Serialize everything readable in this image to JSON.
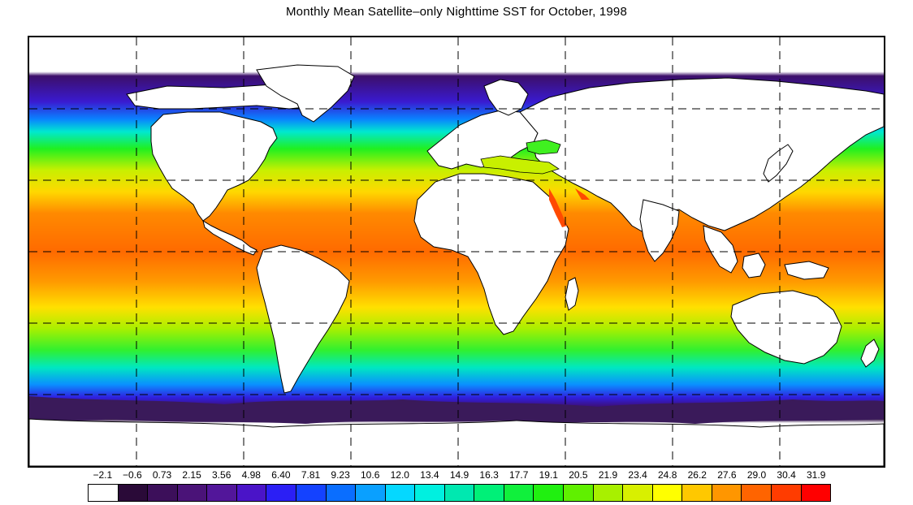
{
  "title": "Monthly Mean Satellite–only Nighttime SST for October, 1998",
  "colorbar": {
    "labels": [
      "−2.1",
      "−0.6",
      "0.73",
      "2.15",
      "3.56",
      "4.98",
      "6.40",
      "7.81",
      "9.23",
      "10.6",
      "12.0",
      "13.4",
      "14.9",
      "16.3",
      "17.7",
      "19.1",
      "20.5",
      "21.9",
      "23.4",
      "24.8",
      "26.2",
      "27.6",
      "29.0",
      "30.4",
      "31.9"
    ],
    "colors": [
      "#ffffff",
      "#2a0a38",
      "#3c0f5a",
      "#4a1378",
      "#52169a",
      "#4a14c8",
      "#2b1ff5",
      "#1442ff",
      "#0a6eff",
      "#0aa0ff",
      "#05d8ff",
      "#00f0e0",
      "#00e8b0",
      "#00f078",
      "#10f03c",
      "#20f010",
      "#60f000",
      "#a8f000",
      "#d8f000",
      "#ffff00",
      "#ffc800",
      "#ff9600",
      "#ff6400",
      "#ff3c00",
      "#ff0000"
    ]
  },
  "legend_colors": {
    "land": "#ffffff",
    "ice": "#3a1a5a",
    "grid": "#000000"
  }
}
